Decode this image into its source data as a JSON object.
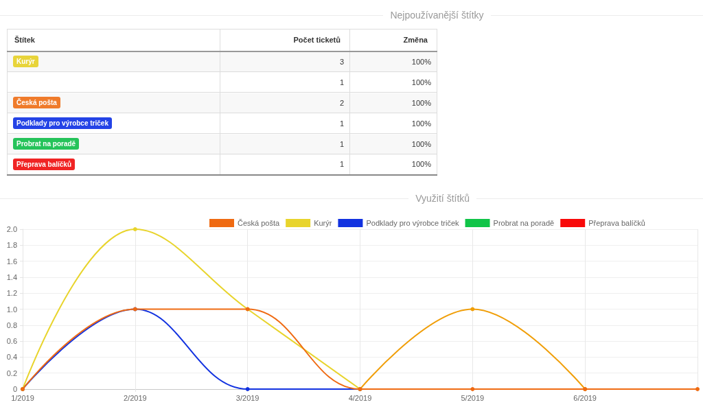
{
  "chart_data": [
    {
      "type": "other",
      "title": "Nejpoužívanější štítky",
      "legend_title": "Štítek",
      "categories": [
        "Počet ticketů",
        "Změna"
      ],
      "colors": [
        "#e8d43a",
        null,
        "#ef7b2b",
        "#2443e6",
        "#25c35a",
        "#f02424"
      ],
      "series": [
        {
          "name": "Kurýr",
          "values": [
            3,
            100
          ],
          "value_labels": [
            "3",
            "100%"
          ]
        },
        {
          "values": [
            1,
            100
          ],
          "value_labels": [
            "1",
            "100%"
          ]
        },
        {
          "name": "Česká pošta",
          "values": [
            2,
            100
          ],
          "value_labels": [
            "2",
            "100%"
          ]
        },
        {
          "name": "Podklady pro výrobce triček",
          "values": [
            1,
            100
          ],
          "value_labels": [
            "1",
            "100%"
          ]
        },
        {
          "name": "Probrat na poradě",
          "values": [
            1,
            100
          ],
          "value_labels": [
            "1",
            "100%"
          ]
        },
        {
          "name": "Přeprava balíčků",
          "values": [
            1,
            100
          ],
          "value_labels": [
            "1",
            "100%"
          ]
        }
      ],
      "data_labels": true
    },
    {
      "type": "line",
      "title": "Využití štítků",
      "categories": [
        "1/2019",
        "2/2019",
        "3/2019",
        "4/2019",
        "5/2019",
        "6/2019",
        null
      ],
      "series": [
        {
          "name": "Česká pošta",
          "color": "#ef6a12",
          "values": [
            0,
            1,
            1,
            0,
            0,
            0,
            0
          ]
        },
        {
          "name": "Kurýr",
          "color": "#e8d42c",
          "values": [
            0,
            2,
            1,
            0,
            null,
            null,
            null
          ]
        },
        {
          "name": "Podklady pro výrobce triček",
          "color": "#1232e0",
          "values": [
            0,
            1,
            0,
            0,
            null,
            null,
            null
          ]
        },
        {
          "color": "#f09e08",
          "values": [
            null,
            null,
            null,
            0,
            1,
            0,
            null
          ]
        },
        {
          "name": "Probrat na poradě",
          "color": "#10c448",
          "values": [
            null,
            null,
            null,
            null,
            null,
            null,
            null
          ]
        },
        {
          "name": "Přeprava balíčků",
          "color": "#f80808",
          "values": [
            null,
            null,
            null,
            null,
            null,
            null,
            null
          ]
        }
      ],
      "ylim": [
        0,
        2
      ],
      "yticks": [
        0,
        0.2,
        0.4,
        0.6,
        0.8,
        {
          "value": 1,
          "label": "1.0"
        },
        1.2,
        1.4,
        1.6,
        1.8,
        {
          "value": 2,
          "label": "2.0"
        }
      ],
      "grid": true,
      "legend": "top",
      "marker": "circle",
      "line_style": "solid"
    }
  ]
}
